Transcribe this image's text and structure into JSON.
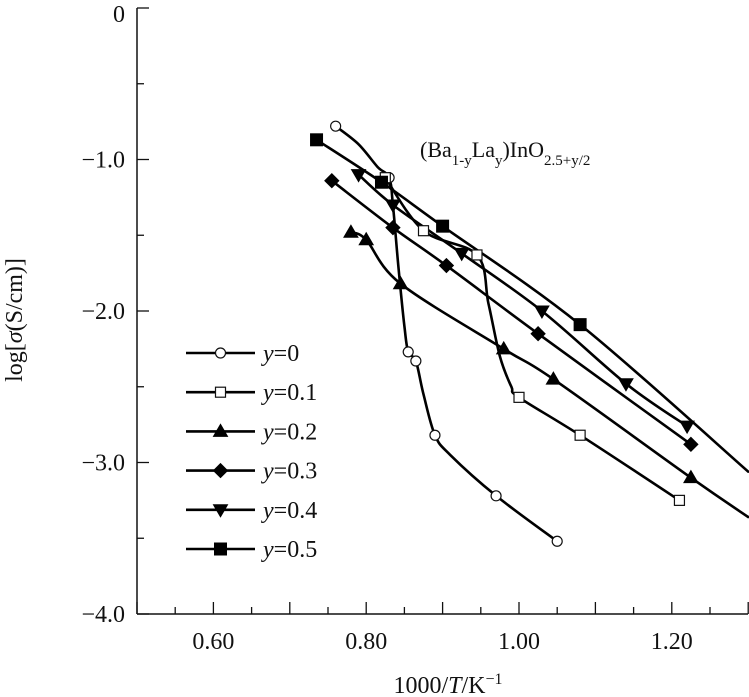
{
  "chart_data": {
    "type": "line",
    "title": "",
    "xlabel": {
      "prefix": "1000/",
      "italic": "T",
      "suffix": "/K",
      "sup": "−1"
    },
    "ylabel": {
      "prefix": "log[",
      "italic": "σ",
      "suffix": "(S/cm)]"
    },
    "xlim": [
      0.5,
      1.3
    ],
    "ylim": [
      -4.0,
      0
    ],
    "x_ticks": [
      0.6,
      0.8,
      1.0,
      1.2
    ],
    "x_tick_labels": [
      "0.60",
      "0.80",
      "1.00",
      "1.20"
    ],
    "y_ticks": [
      0,
      -1.0,
      -2.0,
      -3.0,
      -4.0
    ],
    "y_tick_labels": [
      "0",
      "−1.0",
      "−2.0",
      "−3.0",
      "−4.0"
    ],
    "grid": false,
    "legend_position": "bottom-left",
    "annotation": {
      "parts": [
        {
          "t": "(Ba",
          "sub": false
        },
        {
          "t": "1-y",
          "sub": true
        },
        {
          "t": "La",
          "sub": false
        },
        {
          "t": "y",
          "sub": true
        },
        {
          "t": ")InO",
          "sub": false
        },
        {
          "t": "2.5+y/2",
          "sub": true
        }
      ]
    },
    "series": [
      {
        "name": "y=0",
        "var": "y",
        "val": "=0",
        "marker": "circle-open",
        "points": [
          [
            0.76,
            -0.78
          ],
          [
            0.83,
            -1.12
          ],
          [
            0.855,
            -2.27
          ],
          [
            0.865,
            -2.33
          ],
          [
            0.89,
            -2.82
          ],
          [
            0.97,
            -3.22
          ],
          [
            1.05,
            -3.52
          ]
        ],
        "curve": [
          [
            0.76,
            -0.78
          ],
          [
            0.79,
            -0.9
          ],
          [
            0.815,
            -1.05
          ],
          [
            0.83,
            -1.12
          ],
          [
            0.835,
            -1.3
          ],
          [
            0.842,
            -1.7
          ],
          [
            0.85,
            -2.1
          ],
          [
            0.855,
            -2.27
          ],
          [
            0.865,
            -2.33
          ],
          [
            0.875,
            -2.55
          ],
          [
            0.89,
            -2.82
          ],
          [
            0.91,
            -2.95
          ],
          [
            0.97,
            -3.22
          ],
          [
            1.05,
            -3.52
          ]
        ]
      },
      {
        "name": "y=0.1",
        "var": "y",
        "val": "=0.1",
        "marker": "square-open",
        "points": [
          [
            0.825,
            -1.12
          ],
          [
            0.875,
            -1.47
          ],
          [
            0.945,
            -1.63
          ],
          [
            1.0,
            -2.57
          ],
          [
            1.08,
            -2.82
          ],
          [
            1.21,
            -3.25
          ]
        ],
        "curve": [
          [
            0.825,
            -1.12
          ],
          [
            0.875,
            -1.47
          ],
          [
            0.945,
            -1.63
          ],
          [
            0.96,
            -1.95
          ],
          [
            0.975,
            -2.3
          ],
          [
            0.99,
            -2.5
          ],
          [
            1.0,
            -2.57
          ],
          [
            1.08,
            -2.82
          ],
          [
            1.21,
            -3.25
          ]
        ]
      },
      {
        "name": "y=0.2",
        "var": "y",
        "val": "=0.2",
        "marker": "triangle-up",
        "points": [
          [
            0.78,
            -1.48
          ],
          [
            0.8,
            -1.53
          ],
          [
            0.845,
            -1.82
          ],
          [
            0.98,
            -2.25
          ],
          [
            1.045,
            -2.45
          ],
          [
            1.225,
            -3.1
          ]
        ],
        "curve": [
          [
            0.78,
            -1.48
          ],
          [
            0.8,
            -1.53
          ],
          [
            0.845,
            -1.82
          ],
          [
            0.98,
            -2.25
          ],
          [
            1.045,
            -2.45
          ],
          [
            1.225,
            -3.1
          ],
          [
            1.3,
            -3.36
          ]
        ]
      },
      {
        "name": "y=0.3",
        "var": "y",
        "val": "=0.3",
        "marker": "diamond",
        "points": [
          [
            0.755,
            -1.14
          ],
          [
            0.835,
            -1.45
          ],
          [
            0.905,
            -1.7
          ],
          [
            1.025,
            -2.15
          ],
          [
            1.225,
            -2.88
          ]
        ],
        "curve": [
          [
            0.755,
            -1.14
          ],
          [
            0.835,
            -1.45
          ],
          [
            0.905,
            -1.7
          ],
          [
            1.025,
            -2.15
          ],
          [
            1.225,
            -2.88
          ]
        ]
      },
      {
        "name": "y=0.4",
        "var": "y",
        "val": "=0.4",
        "marker": "triangle-down",
        "points": [
          [
            0.79,
            -1.1
          ],
          [
            0.835,
            -1.3
          ],
          [
            0.925,
            -1.62
          ],
          [
            1.03,
            -2.0
          ],
          [
            1.14,
            -2.48
          ],
          [
            1.22,
            -2.76
          ]
        ],
        "curve": [
          [
            0.79,
            -1.1
          ],
          [
            0.835,
            -1.3
          ],
          [
            0.925,
            -1.62
          ],
          [
            1.03,
            -2.0
          ],
          [
            1.14,
            -2.48
          ],
          [
            1.22,
            -2.76
          ]
        ]
      },
      {
        "name": "y=0.5",
        "var": "y",
        "val": "=0.5",
        "marker": "square-filled",
        "points": [
          [
            0.735,
            -0.87
          ],
          [
            0.82,
            -1.15
          ],
          [
            0.9,
            -1.44
          ],
          [
            1.08,
            -2.09
          ]
        ],
        "curve": [
          [
            0.735,
            -0.87
          ],
          [
            0.82,
            -1.15
          ],
          [
            0.9,
            -1.44
          ],
          [
            1.08,
            -2.09
          ],
          [
            1.3,
            -3.06
          ]
        ]
      }
    ]
  }
}
